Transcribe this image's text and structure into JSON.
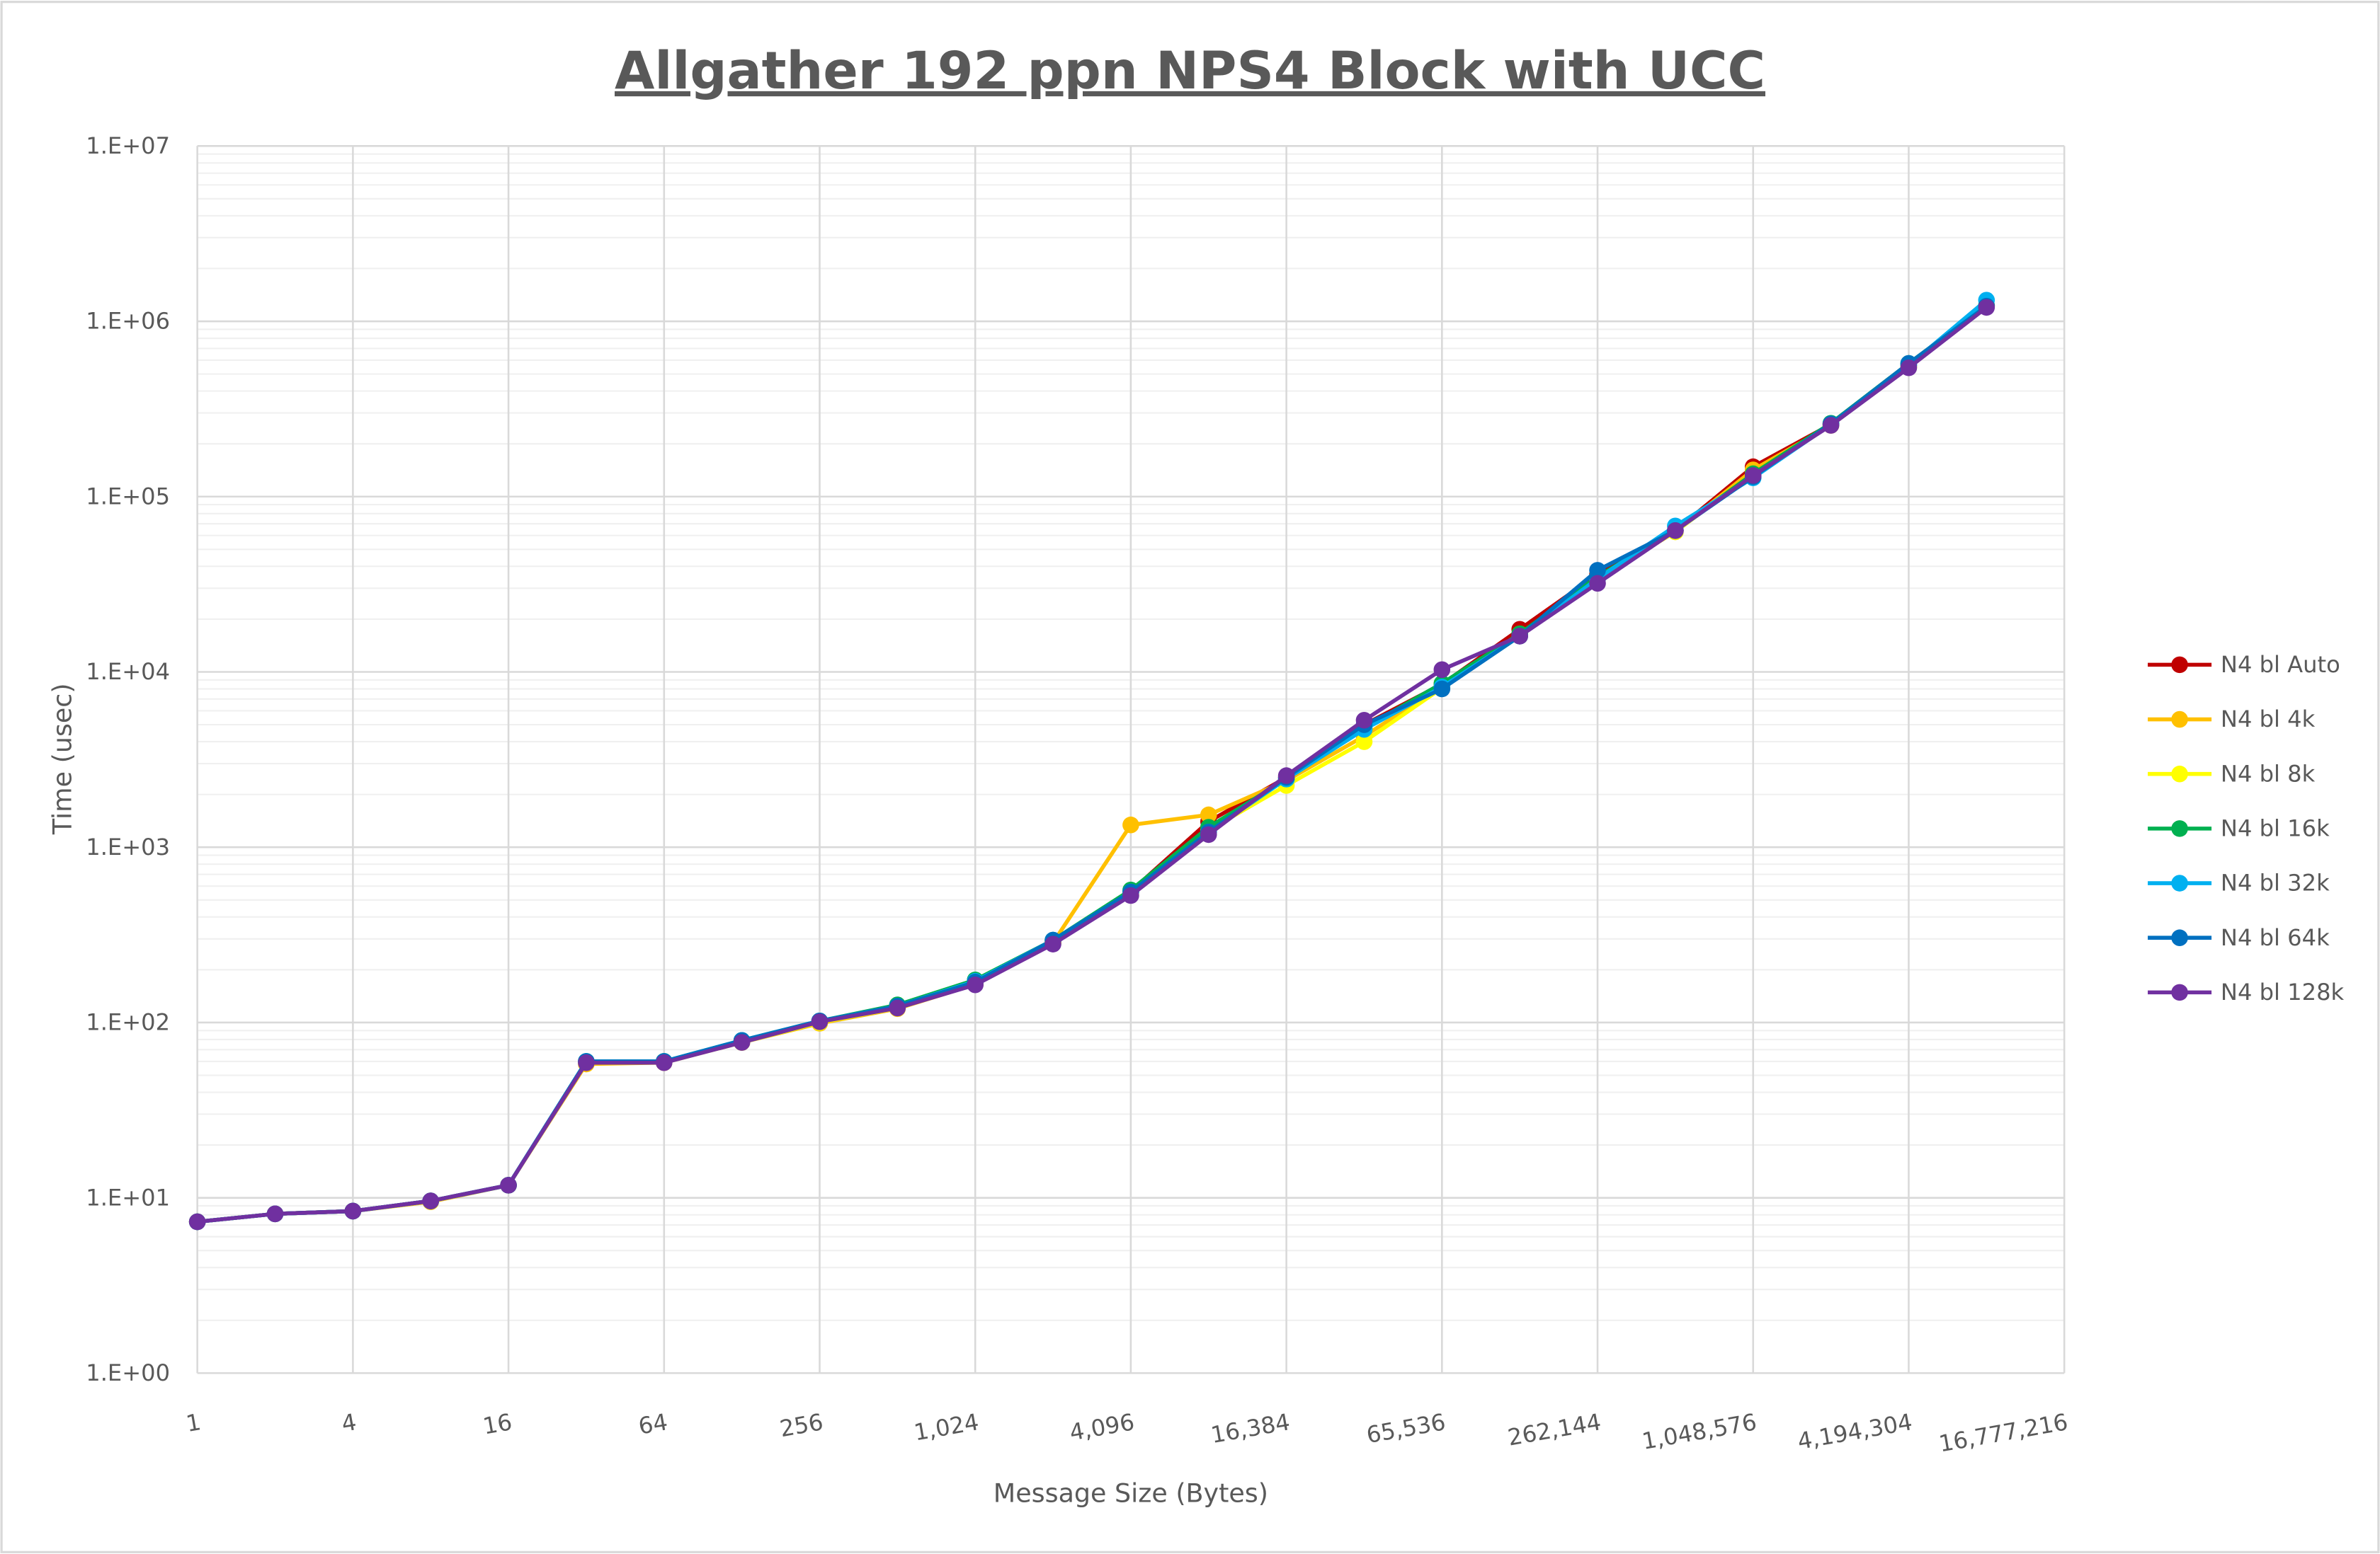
{
  "chart_data": {
    "type": "line",
    "title": "Allgather 192 ppn NPS4 Block with UCC",
    "xlabel": "Message Size (Bytes)",
    "ylabel": "Time (usec)",
    "xscale": "log2",
    "yscale": "log10",
    "xlim": [
      1,
      16777216
    ],
    "ylim": [
      1,
      10000000
    ],
    "grid": true,
    "legend_position": "right",
    "x": [
      1,
      2,
      4,
      8,
      16,
      32,
      64,
      128,
      256,
      512,
      1024,
      2048,
      4096,
      8192,
      16384,
      32768,
      65536,
      131072,
      262144,
      524288,
      1048576,
      2097152,
      4194304,
      8388608
    ],
    "x_tick_labels": [
      "1",
      "4",
      "16",
      "64",
      "256",
      "1,024",
      "4,096",
      "16,384",
      "65,536",
      "262,144",
      "1,048,576",
      "4,194,304",
      "16,777,216"
    ],
    "x_tick_values": [
      1,
      4,
      16,
      64,
      256,
      1024,
      4096,
      16384,
      65536,
      262144,
      1048576,
      4194304,
      16777216
    ],
    "y_tick_labels": [
      "1.E+00",
      "1.E+01",
      "1.E+02",
      "1.E+03",
      "1.E+04",
      "1.E+05",
      "1.E+06",
      "1.E+07"
    ],
    "y_tick_values": [
      1,
      10,
      100,
      1000,
      10000,
      100000,
      1000000,
      10000000
    ],
    "series": [
      {
        "name": "N4 bl Auto",
        "color": "#C00000",
        "values": [
          7.3,
          8.1,
          8.4,
          9.6,
          11.8,
          59,
          60,
          78,
          102,
          123,
          168,
          290,
          560,
          1400,
          2500,
          5000,
          8500,
          17500,
          36000,
          64000,
          148000,
          258000,
          560000,
          1220000
        ]
      },
      {
        "name": "N4 bl 4k",
        "color": "#FFC000",
        "values": [
          7.3,
          8.1,
          8.4,
          9.5,
          11.8,
          58,
          59,
          77,
          99,
          120,
          165,
          285,
          1340,
          1530,
          2400,
          4300,
          8300,
          16500,
          34000,
          63000,
          142000,
          255000,
          550000,
          1230000
        ]
      },
      {
        "name": "N4 bl 8k",
        "color": "#FFFF00",
        "values": [
          7.3,
          8.1,
          8.4,
          9.6,
          11.8,
          59,
          60,
          77,
          100,
          121,
          166,
          285,
          540,
          1250,
          2250,
          4000,
          8100,
          16000,
          34000,
          63000,
          135000,
          256000,
          545000,
          1220000
        ]
      },
      {
        "name": "N4 bl 16k",
        "color": "#00B050",
        "values": [
          7.3,
          8.1,
          8.4,
          9.6,
          11.8,
          60,
          60,
          79,
          102,
          126,
          175,
          295,
          570,
          1300,
          2450,
          4800,
          8600,
          16500,
          35000,
          64000,
          135000,
          262000,
          575000,
          1230000
        ]
      },
      {
        "name": "N4 bl 32k",
        "color": "#00B0F0",
        "values": [
          7.3,
          8.1,
          8.4,
          9.6,
          11.8,
          60,
          60,
          79,
          102,
          124,
          172,
          295,
          555,
          1220,
          2450,
          4700,
          8200,
          16000,
          34000,
          68000,
          128000,
          258000,
          560000,
          1320000
        ]
      },
      {
        "name": "N4 bl 64k",
        "color": "#0070C0",
        "values": [
          7.3,
          8.1,
          8.4,
          9.6,
          11.8,
          60,
          60,
          79,
          102,
          124,
          170,
          295,
          555,
          1220,
          2500,
          5000,
          8000,
          16000,
          38000,
          64000,
          130000,
          260000,
          575000,
          1220000
        ]
      },
      {
        "name": "N4 bl 128k",
        "color": "#7030A0",
        "values": [
          7.3,
          8.1,
          8.4,
          9.6,
          11.8,
          59,
          59,
          77,
          101,
          121,
          164,
          280,
          530,
          1180,
          2560,
          5300,
          10300,
          16000,
          32000,
          64000,
          132000,
          255000,
          543000,
          1200000
        ]
      }
    ]
  }
}
